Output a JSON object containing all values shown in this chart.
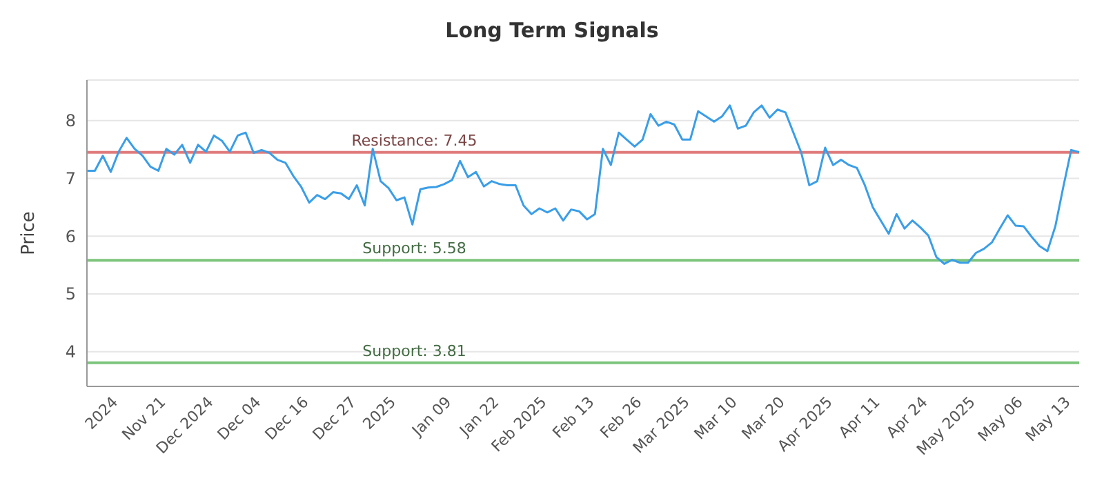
{
  "chart_data": {
    "type": "line",
    "title": "Long Term Signals",
    "ylabel": "Price",
    "categories": [
      null,
      null,
      null,
      null,
      "2024",
      null,
      null,
      null,
      null,
      null,
      "Nov 21",
      null,
      null,
      null,
      null,
      null,
      "Dec 2024",
      null,
      null,
      null,
      null,
      null,
      "Dec 04",
      null,
      null,
      null,
      null,
      null,
      "Dec 16",
      null,
      null,
      null,
      null,
      null,
      "Dec 27",
      null,
      null,
      null,
      null,
      "2025",
      null,
      null,
      null,
      null,
      null,
      null,
      "Jan 09",
      null,
      null,
      null,
      null,
      null,
      "Jan 22",
      null,
      null,
      null,
      null,
      null,
      "Feb 2025",
      null,
      null,
      null,
      null,
      null,
      "Feb 13",
      null,
      null,
      null,
      null,
      null,
      "Feb 26",
      null,
      null,
      null,
      null,
      null,
      "Mar 2025",
      null,
      null,
      null,
      null,
      null,
      "Mar 10",
      null,
      null,
      null,
      null,
      null,
      "Mar 20",
      null,
      null,
      null,
      null,
      null,
      "Apr 2025",
      null,
      null,
      null,
      null,
      null,
      "Apr 11",
      null,
      null,
      null,
      null,
      null,
      "Apr 24",
      null,
      null,
      null,
      null,
      null,
      "May 2025",
      null,
      null,
      null,
      null,
      null,
      "May 06",
      null,
      null,
      null,
      null,
      null,
      "May 13",
      null
    ],
    "series": [
      {
        "color": "#3a9ee8",
        "values": [
          7.13,
          7.13,
          7.39,
          7.11,
          7.46,
          7.7,
          7.51,
          7.39,
          7.2,
          7.13,
          7.51,
          7.41,
          7.58,
          7.27,
          7.58,
          7.46,
          7.74,
          7.65,
          7.46,
          7.74,
          7.79,
          7.44,
          7.49,
          7.44,
          7.32,
          7.27,
          7.04,
          6.85,
          6.58,
          6.71,
          6.64,
          6.76,
          6.74,
          6.64,
          6.88,
          6.53,
          7.51,
          6.95,
          6.83,
          6.62,
          6.67,
          6.2,
          6.81,
          6.84,
          6.85,
          6.9,
          6.97,
          7.3,
          7.02,
          7.11,
          6.86,
          6.95,
          6.9,
          6.88,
          6.88,
          6.53,
          6.38,
          6.48,
          6.41,
          6.48,
          6.27,
          6.46,
          6.43,
          6.29,
          6.38,
          7.51,
          7.23,
          7.79,
          7.67,
          7.55,
          7.67,
          8.11,
          7.91,
          7.98,
          7.93,
          7.67,
          7.67,
          8.16,
          8.07,
          7.98,
          8.07,
          8.26,
          7.86,
          7.91,
          8.14,
          8.26,
          8.05,
          8.19,
          8.14,
          7.79,
          7.44,
          6.88,
          6.95,
          7.53,
          7.23,
          7.32,
          7.23,
          7.18,
          6.88,
          6.5,
          6.27,
          6.04,
          6.38,
          6.13,
          6.27,
          6.15,
          6.01,
          5.64,
          5.52,
          5.59,
          5.54,
          5.54,
          5.71,
          5.78,
          5.89,
          6.13,
          6.36,
          6.18,
          6.17,
          5.99,
          5.83,
          5.74,
          6.17,
          6.85,
          7.49,
          7.45
        ]
      }
    ],
    "ylim": [
      3.4,
      8.7
    ],
    "yticks": [
      4,
      5,
      6,
      7,
      8
    ],
    "grid": "y",
    "legend": false,
    "marker": "none",
    "line_style": "solid",
    "ref_lines": [
      {
        "axis": "y",
        "value": 7.45,
        "label": "Resistance: 7.45",
        "color": "#e07b7b"
      },
      {
        "axis": "y",
        "value": 5.58,
        "label": "Support: 5.58",
        "color": "#7cc47c"
      },
      {
        "axis": "y",
        "value": 3.81,
        "label": "Support: 3.81",
        "color": "#7cc47c"
      }
    ]
  }
}
